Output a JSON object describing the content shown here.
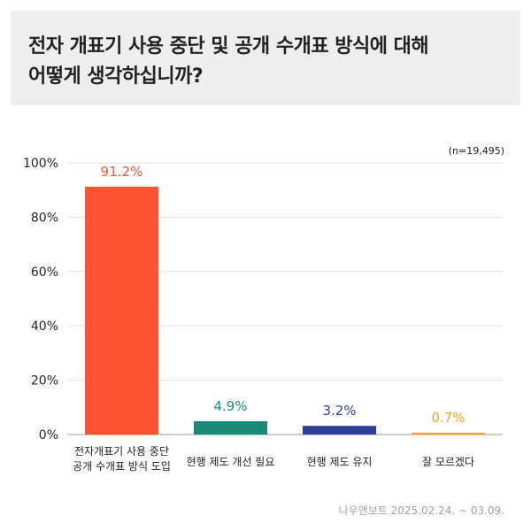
{
  "question": {
    "line1": "전자 개표기 사용 중단 및 공개 수개표 방식에 대해",
    "line2": "어떻게 생각하십니까?"
  },
  "sample_size": "(n=19,495)",
  "source": "나우앤보트 2025.02.24. ~ 03.09.",
  "chart_data": {
    "type": "bar",
    "categories": [
      [
        "전자개표기 사용 중단",
        "공개 수개표 방식 도입"
      ],
      [
        "현행 제도 개선 필요"
      ],
      [
        "현행 제도 유지"
      ],
      [
        "잘 모르겠다"
      ]
    ],
    "values": [
      91.2,
      4.9,
      3.2,
      0.7
    ],
    "data_labels": [
      "91.2%",
      "4.9%",
      "3.2%",
      "0.7%"
    ],
    "colors": [
      "#ff5232",
      "#1a8a78",
      "#2f3f98",
      "#f5a61e"
    ],
    "yticks": [
      "0%",
      "20%",
      "40%",
      "60%",
      "80%",
      "100%"
    ],
    "ylim": [
      0,
      100
    ],
    "grid": true
  }
}
